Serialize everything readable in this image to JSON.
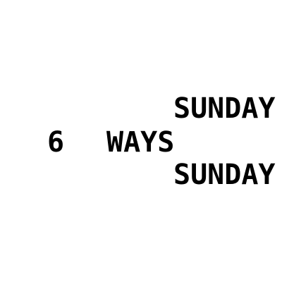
{
  "number": "6",
  "middle_word": "WAYS",
  "top_word": "SUNDAY",
  "bottom_word": "SUNDAY",
  "text_color": "#000000",
  "background_color": "#ffffff"
}
